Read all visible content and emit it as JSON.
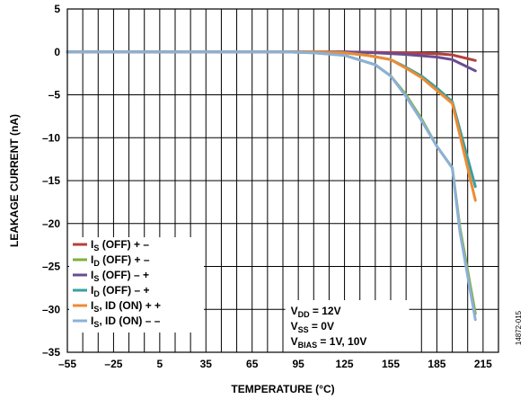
{
  "chart_data": {
    "type": "line",
    "xlabel": "TEMPERATURE (°C)",
    "ylabel": "LEAKAGE CURRENT (nA)",
    "xlim": [
      -55,
      225
    ],
    "ylim": [
      -35,
      5
    ],
    "x_ticks": [
      "–55",
      "–25",
      "5",
      "35",
      "65",
      "95",
      "125",
      "155",
      "185",
      "215"
    ],
    "x_tick_values": [
      -55,
      -25,
      5,
      35,
      65,
      95,
      125,
      155,
      185,
      215
    ],
    "y_ticks": [
      "5",
      "0",
      "–5",
      "–10",
      "–15",
      "–20",
      "–25",
      "–30",
      "–35"
    ],
    "y_tick_values": [
      5,
      0,
      -5,
      -10,
      -15,
      -20,
      -25,
      -30,
      -35
    ],
    "grid": true,
    "legend_position": "bottom-left",
    "series": [
      {
        "name": "I_S (OFF) + –",
        "label_main": "I",
        "label_sub": "S",
        "label_rest": " (OFF) + –",
        "color": "#b5403c",
        "x": [
          -55,
          85,
          105,
          125,
          145,
          165,
          185,
          195,
          210
        ],
        "y": [
          0,
          0,
          0,
          0,
          -0.05,
          -0.1,
          -0.2,
          -0.35,
          -1.0
        ]
      },
      {
        "name": "I_D (OFF) + –",
        "label_main": "I",
        "label_sub": "D",
        "label_rest": " (OFF) + –",
        "color": "#7fb03c",
        "x": [
          -55,
          85,
          105,
          125,
          145,
          155,
          165,
          175,
          185,
          195,
          200,
          210
        ],
        "y": [
          0,
          0,
          -0.1,
          -0.4,
          -1.5,
          -2.8,
          -5.0,
          -7.8,
          -11.0,
          -13.5,
          -20.5,
          -30.5
        ]
      },
      {
        "name": "I_S (OFF) – +",
        "label_main": "I",
        "label_sub": "S",
        "label_rest": " (OFF) – +",
        "color": "#6a4c93",
        "x": [
          -55,
          85,
          105,
          125,
          145,
          165,
          185,
          195,
          210
        ],
        "y": [
          0,
          0,
          0,
          0,
          -0.1,
          -0.3,
          -0.6,
          -0.9,
          -2.2
        ]
      },
      {
        "name": "I_D (OFF) – +",
        "label_main": "I",
        "label_sub": "D",
        "label_rest": " (OFF) – +",
        "color": "#3a9fa0",
        "x": [
          -55,
          85,
          105,
          125,
          140,
          155,
          165,
          175,
          185,
          195,
          210
        ],
        "y": [
          0,
          0,
          0,
          -0.1,
          -0.4,
          -0.9,
          -1.8,
          -2.8,
          -4.2,
          -5.8,
          -15.7
        ]
      },
      {
        "name": "I_S, ID (ON) + +",
        "label_main": "I",
        "label_sub": "S",
        "label_rest": ", ID (ON) + +",
        "color": "#ed8b32",
        "x": [
          -55,
          85,
          105,
          125,
          140,
          155,
          165,
          175,
          185,
          195,
          210
        ],
        "y": [
          0,
          0,
          0,
          -0.1,
          -0.4,
          -0.9,
          -1.9,
          -3.0,
          -4.5,
          -6.0,
          -17.3
        ]
      },
      {
        "name": "I_S, ID (ON) – –",
        "label_main": "I",
        "label_sub": "S",
        "label_rest": ", ID (ON) – –",
        "color": "#8cb0d8",
        "x": [
          -55,
          85,
          105,
          125,
          145,
          155,
          165,
          175,
          185,
          195,
          200,
          210
        ],
        "y": [
          0,
          0,
          -0.1,
          -0.4,
          -1.5,
          -2.8,
          -5.2,
          -8.0,
          -11.0,
          -13.5,
          -21.0,
          -31.2
        ]
      }
    ],
    "annotation": {
      "line1_main": "V",
      "line1_sub": "DD",
      "line1_rest": " = 12V",
      "line2_main": "V",
      "line2_sub": "SS",
      "line2_rest": " = 0V",
      "line3_main": "V",
      "line3_sub": "BIAS",
      "line3_rest": " = 1V, 10V"
    }
  },
  "figure_id": "14872-015"
}
